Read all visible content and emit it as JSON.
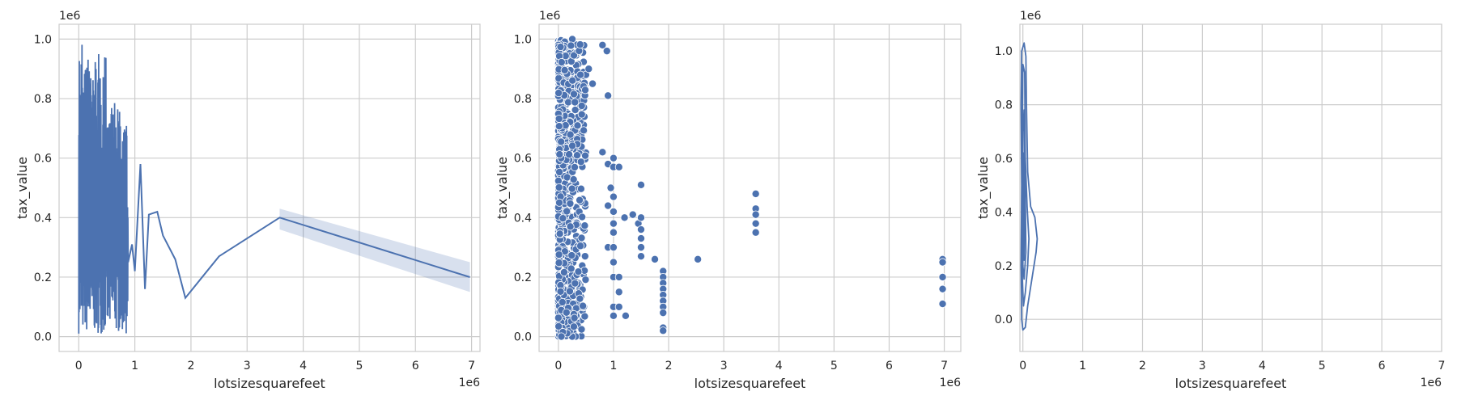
{
  "colors": {
    "series": "#4c72b0",
    "band": "#4c72b0",
    "grid": "#cccccc",
    "text": "#262626"
  },
  "chart_data": [
    {
      "type": "line",
      "xlabel": "lotsizesquarefeet",
      "ylabel": "tax_value",
      "x_offset_text": "1e6",
      "y_offset_text": "1e6",
      "xlim": [
        -0.35,
        7.15
      ],
      "ylim": [
        -0.05,
        1.05
      ],
      "xticks": [
        0,
        1,
        2,
        3,
        4,
        5,
        6,
        7
      ],
      "yticks": [
        0.0,
        0.2,
        0.4,
        0.6,
        0.8,
        1.0
      ],
      "grid": true,
      "series_dense_region": {
        "x_range": [
          0.0,
          0.88
        ],
        "y_range": [
          0.01,
          1.0
        ]
      },
      "series": [
        {
          "x": [
            0.88,
            0.95,
            1.0,
            1.1,
            1.18,
            1.25,
            1.4,
            1.5,
            1.72,
            1.9,
            2.5,
            3.58,
            6.97
          ],
          "y": [
            0.25,
            0.31,
            0.22,
            0.58,
            0.16,
            0.41,
            0.42,
            0.34,
            0.26,
            0.13,
            0.27,
            0.4,
            0.2
          ]
        }
      ],
      "confidence_band": {
        "x": [
          3.58,
          6.97
        ],
        "lower": [
          0.36,
          0.15
        ],
        "upper": [
          0.43,
          0.25
        ]
      }
    },
    {
      "type": "scatter",
      "xlabel": "lotsizesquarefeet",
      "ylabel": "tax_value",
      "x_offset_text": "1e6",
      "y_offset_text": "1e6",
      "xlim": [
        -0.35,
        7.3
      ],
      "ylim": [
        -0.05,
        1.05
      ],
      "xticks": [
        0,
        1,
        2,
        3,
        4,
        5,
        6,
        7
      ],
      "yticks": [
        0.0,
        0.2,
        0.4,
        0.6,
        0.8,
        1.0
      ],
      "grid": true,
      "dense_cluster": {
        "x_range": [
          0.0,
          0.5
        ],
        "y_range": [
          0.0,
          1.0
        ]
      },
      "points": [
        [
          0.8,
          0.98
        ],
        [
          0.88,
          0.96
        ],
        [
          0.5,
          0.88
        ],
        [
          0.4,
          0.88
        ],
        [
          0.9,
          0.81
        ],
        [
          0.55,
          0.9
        ],
        [
          0.62,
          0.85
        ],
        [
          0.8,
          0.62
        ],
        [
          0.9,
          0.58
        ],
        [
          1.0,
          0.6
        ],
        [
          1.0,
          0.57
        ],
        [
          1.1,
          0.57
        ],
        [
          0.95,
          0.5
        ],
        [
          1.0,
          0.47
        ],
        [
          0.9,
          0.44
        ],
        [
          1.0,
          0.42
        ],
        [
          1.0,
          0.38
        ],
        [
          1.0,
          0.35
        ],
        [
          0.9,
          0.3
        ],
        [
          1.0,
          0.3
        ],
        [
          1.0,
          0.25
        ],
        [
          1.0,
          0.2
        ],
        [
          1.1,
          0.2
        ],
        [
          1.1,
          0.15
        ],
        [
          1.0,
          0.1
        ],
        [
          1.1,
          0.1
        ],
        [
          1.22,
          0.07
        ],
        [
          1.0,
          0.07
        ],
        [
          1.2,
          0.4
        ],
        [
          1.35,
          0.41
        ],
        [
          1.5,
          0.51
        ],
        [
          1.45,
          0.38
        ],
        [
          1.5,
          0.4
        ],
        [
          1.5,
          0.36
        ],
        [
          1.5,
          0.33
        ],
        [
          1.5,
          0.3
        ],
        [
          1.5,
          0.27
        ],
        [
          1.75,
          0.26
        ],
        [
          1.9,
          0.22
        ],
        [
          1.9,
          0.2
        ],
        [
          1.9,
          0.18
        ],
        [
          1.9,
          0.16
        ],
        [
          1.9,
          0.14
        ],
        [
          1.9,
          0.12
        ],
        [
          1.9,
          0.1
        ],
        [
          1.9,
          0.08
        ],
        [
          1.9,
          0.03
        ],
        [
          1.9,
          0.02
        ],
        [
          2.53,
          0.26
        ],
        [
          3.58,
          0.48
        ],
        [
          3.58,
          0.43
        ],
        [
          3.58,
          0.41
        ],
        [
          3.58,
          0.38
        ],
        [
          3.58,
          0.35
        ],
        [
          6.97,
          0.26
        ],
        [
          6.97,
          0.25
        ],
        [
          6.97,
          0.2
        ],
        [
          6.97,
          0.16
        ],
        [
          6.97,
          0.11
        ]
      ]
    },
    {
      "type": "kde",
      "xlabel": "lotsizesquarefeet",
      "ylabel": "tax_value",
      "x_offset_text": "1e6",
      "y_offset_text": "1e6",
      "xlim": [
        -0.05,
        7.0
      ],
      "ylim": [
        -0.12,
        1.1
      ],
      "xticks": [
        0,
        1,
        2,
        3,
        4,
        5,
        6,
        7
      ],
      "yticks": [
        0.0,
        0.2,
        0.4,
        0.6,
        0.8,
        1.0
      ],
      "grid": true,
      "contours": [
        [
          [
            0.0,
            -0.04
          ],
          [
            0.04,
            -0.03
          ],
          [
            0.08,
            0.05
          ],
          [
            0.15,
            0.15
          ],
          [
            0.22,
            0.25
          ],
          [
            0.24,
            0.3
          ],
          [
            0.2,
            0.38
          ],
          [
            0.13,
            0.42
          ],
          [
            0.08,
            0.55
          ],
          [
            0.06,
            0.8
          ],
          [
            0.05,
            0.98
          ],
          [
            0.02,
            1.03
          ],
          [
            -0.02,
            1.0
          ],
          [
            -0.03,
            0.8
          ],
          [
            -0.02,
            0.5
          ],
          [
            -0.03,
            0.2
          ],
          [
            -0.02,
            0.0
          ],
          [
            0.0,
            -0.04
          ]
        ],
        [
          [
            0.01,
            0.05
          ],
          [
            0.04,
            0.1
          ],
          [
            0.08,
            0.2
          ],
          [
            0.1,
            0.3
          ],
          [
            0.07,
            0.42
          ],
          [
            0.04,
            0.6
          ],
          [
            0.03,
            0.92
          ],
          [
            0.0,
            0.95
          ],
          [
            -0.01,
            0.7
          ],
          [
            0.0,
            0.4
          ],
          [
            -0.01,
            0.15
          ],
          [
            0.01,
            0.05
          ]
        ],
        [
          [
            0.02,
            0.15
          ],
          [
            0.05,
            0.25
          ],
          [
            0.04,
            0.45
          ],
          [
            0.02,
            0.78
          ],
          [
            0.0,
            0.7
          ],
          [
            0.0,
            0.4
          ],
          [
            0.0,
            0.2
          ],
          [
            0.02,
            0.15
          ]
        ],
        [
          [
            0.02,
            0.22
          ],
          [
            0.03,
            0.35
          ],
          [
            0.02,
            0.55
          ],
          [
            0.01,
            0.62
          ],
          [
            0.005,
            0.45
          ],
          [
            0.005,
            0.3
          ],
          [
            0.02,
            0.22
          ]
        ]
      ]
    }
  ]
}
